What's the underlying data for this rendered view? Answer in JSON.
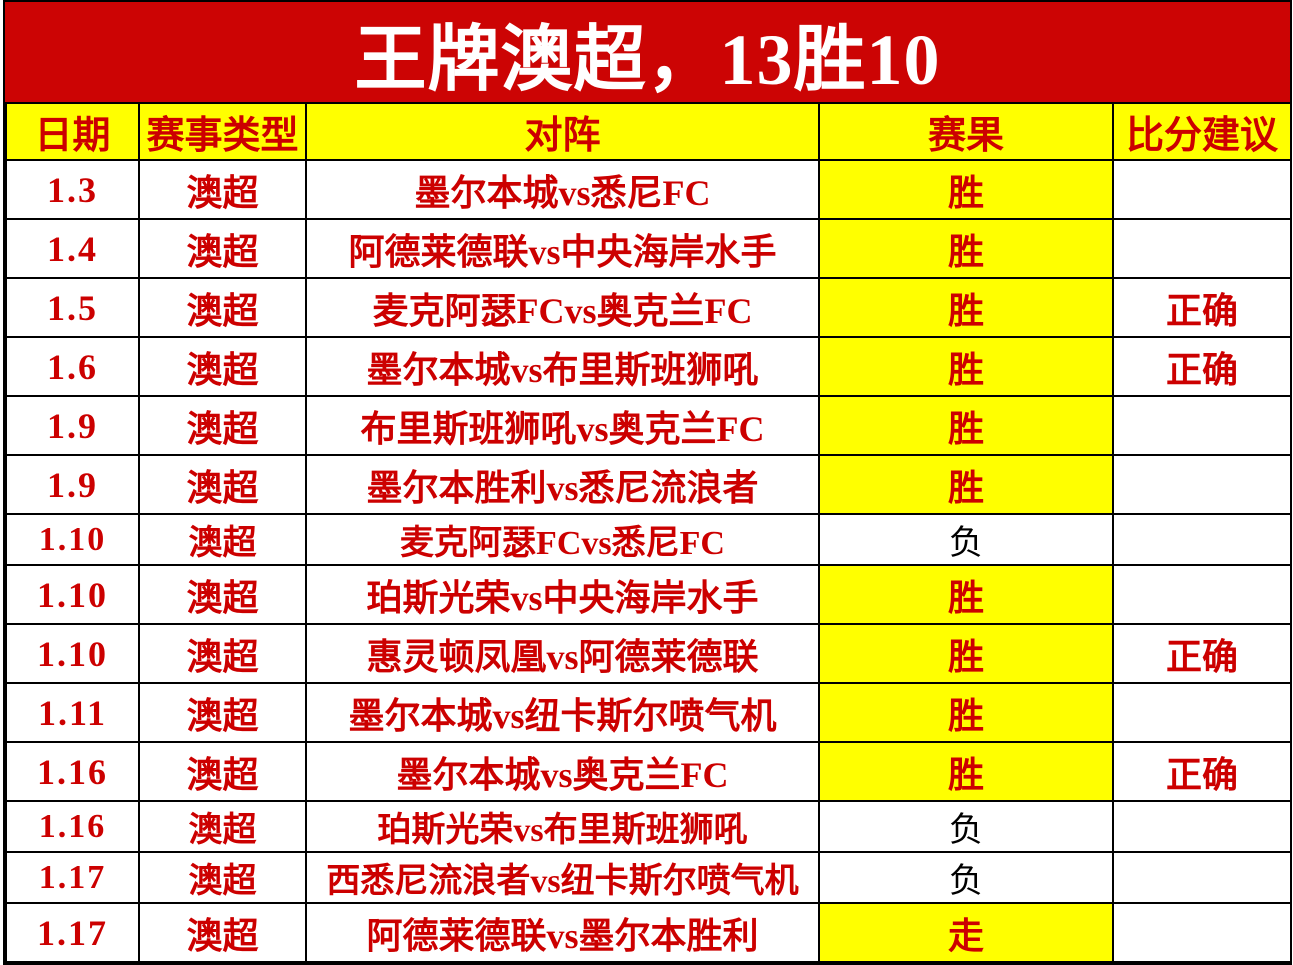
{
  "title": "王牌澳超，13胜10",
  "colors": {
    "banner_background": "#CC0404",
    "highlight_yellow": "#FFFF00",
    "text_red": "#CC0000",
    "loss_text_black": "#000000",
    "grid_black": "#000000",
    "cell_white": "#FFFFFF"
  },
  "chart_data": {
    "type": "table",
    "title": "王牌澳超，13胜10",
    "columns": [
      "日期",
      "赛事类型",
      "对阵",
      "赛果",
      "比分建议"
    ],
    "rows": [
      {
        "date": "1.3",
        "league": "澳超",
        "match": "墨尔本城vs悉尼FC",
        "result": "胜",
        "advice": "",
        "highlight": true
      },
      {
        "date": "1.4",
        "league": "澳超",
        "match": "阿德莱德联vs中央海岸水手",
        "result": "胜",
        "advice": "",
        "highlight": true
      },
      {
        "date": "1.5",
        "league": "澳超",
        "match": "麦克阿瑟FCvs奥克兰FC",
        "result": "胜",
        "advice": "正确",
        "highlight": true
      },
      {
        "date": "1.6",
        "league": "澳超",
        "match": "墨尔本城vs布里斯班狮吼",
        "result": "胜",
        "advice": "正确",
        "highlight": true
      },
      {
        "date": "1.9",
        "league": "澳超",
        "match": "布里斯班狮吼vs奥克兰FC",
        "result": "胜",
        "advice": "",
        "highlight": true
      },
      {
        "date": "1.9",
        "league": "澳超",
        "match": "墨尔本胜利vs悉尼流浪者",
        "result": "胜",
        "advice": "",
        "highlight": true
      },
      {
        "date": "1.10",
        "league": "澳超",
        "match": "麦克阿瑟FCvs悉尼FC",
        "result": "负",
        "advice": "",
        "highlight": false
      },
      {
        "date": "1.10",
        "league": "澳超",
        "match": "珀斯光荣vs中央海岸水手",
        "result": "胜",
        "advice": "",
        "highlight": true
      },
      {
        "date": "1.10",
        "league": "澳超",
        "match": "惠灵顿凤凰vs阿德莱德联",
        "result": "胜",
        "advice": "正确",
        "highlight": true
      },
      {
        "date": "1.11",
        "league": "澳超",
        "match": "墨尔本城vs纽卡斯尔喷气机",
        "result": "胜",
        "advice": "",
        "highlight": true
      },
      {
        "date": "1.16",
        "league": "澳超",
        "match": "墨尔本城vs奥克兰FC",
        "result": "胜",
        "advice": "正确",
        "highlight": true
      },
      {
        "date": "1.16",
        "league": "澳超",
        "match": "珀斯光荣vs布里斯班狮吼",
        "result": "负",
        "advice": "",
        "highlight": false
      },
      {
        "date": "1.17",
        "league": "澳超",
        "match": "西悉尼流浪者vs纽卡斯尔喷气机",
        "result": "负",
        "advice": "",
        "highlight": false
      },
      {
        "date": "1.17",
        "league": "澳超",
        "match": "阿德莱德联vs墨尔本胜利",
        "result": "走",
        "advice": "",
        "highlight": true
      }
    ]
  }
}
